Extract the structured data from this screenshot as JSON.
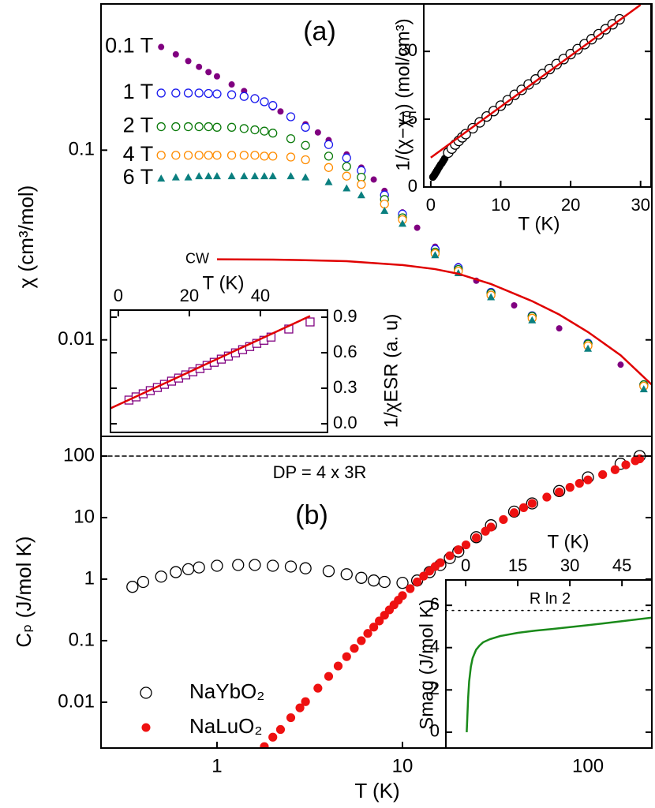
{
  "chart_data": [
    {
      "type": "scatter",
      "panel_label": "(a)",
      "ylabel": "χ (cm³/mol)",
      "xscale": "log",
      "yscale": "log",
      "xlim": [
        0.237,
        221
      ],
      "ylim": [
        0.0031,
        0.59
      ],
      "yticks": [
        0.01,
        0.1
      ],
      "legend": "inline",
      "series": [
        {
          "name": "0.1 T",
          "color": "#800080",
          "marker": "filled-circle",
          "x": [
            0.5,
            0.6,
            0.7,
            0.8,
            0.9,
            1,
            1.2,
            1.4,
            1.6,
            1.8,
            2,
            2.2,
            2.5,
            3,
            3.5,
            4,
            5,
            6,
            7,
            8,
            10,
            12,
            15,
            20,
            25,
            30,
            40,
            50,
            70,
            100,
            150,
            200
          ],
          "values": [
            0.35,
            0.32,
            0.295,
            0.275,
            0.258,
            0.245,
            0.222,
            0.205,
            0.19,
            0.178,
            0.168,
            0.16,
            0.15,
            0.137,
            0.124,
            0.113,
            0.095,
            0.081,
            0.07,
            0.061,
            0.047,
            0.039,
            0.031,
            0.0245,
            0.0205,
            0.018,
            0.0152,
            0.0135,
            0.0115,
            0.0097,
            0.0074,
            0.0059
          ]
        },
        {
          "name": "1 T",
          "color": "#1a1aee",
          "marker": "open-circle",
          "x": [
            0.5,
            0.6,
            0.7,
            0.8,
            0.9,
            1,
            1.2,
            1.4,
            1.6,
            1.8,
            2,
            2.5,
            3,
            4,
            5,
            6,
            8,
            10,
            15,
            20,
            30,
            50,
            100,
            200
          ],
          "values": [
            0.2,
            0.2,
            0.2,
            0.2,
            0.199,
            0.198,
            0.196,
            0.192,
            0.187,
            0.18,
            0.172,
            0.15,
            0.132,
            0.107,
            0.091,
            0.078,
            0.058,
            0.046,
            0.03,
            0.024,
            0.0178,
            0.0134,
            0.0096,
            0.0058
          ]
        },
        {
          "name": "2 T",
          "color": "#0a7a0a",
          "marker": "open-circle",
          "x": [
            0.5,
            0.6,
            0.7,
            0.8,
            0.9,
            1,
            1.2,
            1.4,
            1.6,
            1.8,
            2,
            2.5,
            3,
            4,
            5,
            6,
            8,
            10,
            15,
            20,
            30,
            50,
            100,
            200
          ],
          "values": [
            0.133,
            0.133,
            0.133,
            0.133,
            0.133,
            0.132,
            0.132,
            0.13,
            0.128,
            0.126,
            0.123,
            0.115,
            0.106,
            0.093,
            0.082,
            0.072,
            0.055,
            0.044,
            0.029,
            0.0235,
            0.0176,
            0.0133,
            0.0095,
            0.0058
          ]
        },
        {
          "name": "4 T",
          "color": "#ff8c00",
          "marker": "open-circle",
          "x": [
            0.5,
            0.6,
            0.7,
            0.8,
            0.9,
            1,
            1.2,
            1.4,
            1.6,
            1.8,
            2,
            2.5,
            3,
            4,
            5,
            6,
            8,
            10,
            15,
            20,
            30,
            50,
            100,
            200
          ],
          "values": [
            0.094,
            0.094,
            0.094,
            0.094,
            0.094,
            0.094,
            0.094,
            0.094,
            0.094,
            0.093,
            0.093,
            0.092,
            0.089,
            0.081,
            0.073,
            0.066,
            0.052,
            0.043,
            0.0285,
            0.023,
            0.0172,
            0.013,
            0.0093,
            0.0057
          ]
        },
        {
          "name": "6 T",
          "color": "#0a7f7f",
          "marker": "filled-triangle",
          "x": [
            0.5,
            0.6,
            0.7,
            0.8,
            0.9,
            1,
            1.2,
            1.4,
            1.6,
            1.8,
            2,
            2.5,
            3,
            4,
            5,
            6,
            8,
            10,
            15,
            20,
            30,
            50,
            100,
            200
          ],
          "values": [
            0.071,
            0.072,
            0.072,
            0.073,
            0.073,
            0.073,
            0.073,
            0.073,
            0.073,
            0.073,
            0.073,
            0.073,
            0.072,
            0.068,
            0.063,
            0.058,
            0.048,
            0.041,
            0.028,
            0.0225,
            0.0168,
            0.0127,
            0.009,
            0.0055
          ]
        },
        {
          "name": "CW",
          "color": "#e00000",
          "marker": "line",
          "x": [
            1,
            2,
            3,
            5,
            10,
            15,
            20,
            30,
            50,
            70,
            100,
            150,
            221
          ],
          "values": [
            0.0266,
            0.0265,
            0.0263,
            0.026,
            0.0248,
            0.0236,
            0.0223,
            0.0197,
            0.016,
            0.0136,
            0.011,
            0.0083,
            0.0058
          ]
        }
      ]
    },
    {
      "type": "scatter",
      "xlabel": "T (K)",
      "ylabel": "1/(χ−χ₀) (mol/cm³)",
      "xlim": [
        -1,
        31.5
      ],
      "ylim": [
        0,
        40.5
      ],
      "xticks": [
        0,
        10,
        20,
        30
      ],
      "yticks": [
        0,
        15,
        30
      ],
      "series": [
        {
          "color": "#000000",
          "marker": "filled-circle",
          "x": [
            0.3,
            0.4,
            0.5,
            0.6,
            0.7,
            0.8,
            0.9,
            1,
            1.2,
            1.4,
            1.6,
            1.8,
            2
          ],
          "values": [
            2.2,
            2.4,
            2.6,
            2.9,
            3.1,
            3.4,
            3.6,
            3.9,
            4.4,
            4.9,
            5.3,
            5.8,
            6.3
          ]
        },
        {
          "color": "#000000",
          "marker": "open-circle",
          "x": [
            2.5,
            3,
            3.5,
            4,
            4.5,
            5,
            6,
            7,
            8,
            9,
            10,
            11,
            12,
            13,
            14,
            15,
            16,
            17,
            18,
            19,
            20,
            21,
            22,
            23,
            24,
            25,
            26,
            27
          ],
          "values": [
            7.6,
            8.5,
            9.4,
            10.2,
            11,
            11.7,
            13,
            14.3,
            15.6,
            16.8,
            18,
            19.2,
            20.4,
            21.5,
            22.7,
            23.8,
            25,
            26.1,
            27.2,
            28.3,
            29.4,
            30.5,
            31.6,
            32.7,
            33.8,
            34.9,
            36,
            37.1
          ]
        },
        {
          "color": "#e00000",
          "marker": "line",
          "x": [
            0,
            30
          ],
          "values": [
            6.5,
            40.3
          ]
        }
      ]
    },
    {
      "type": "scatter",
      "xlabel": "T (K)",
      "ylabel": "1/χESR (a. u)",
      "xlim": [
        -2.2,
        58.9
      ],
      "ylim": [
        -0.073,
        0.96
      ],
      "xticks": [
        0,
        20,
        40
      ],
      "yticks": [
        {
          "value": 0,
          "label": "0.0"
        },
        0.3,
        0.6,
        0.9
      ],
      "series": [
        {
          "color": "#800080",
          "marker": "open-square",
          "x": [
            3,
            5,
            7,
            9,
            11,
            13,
            15,
            17,
            19,
            21,
            23,
            25,
            27,
            29,
            31,
            33,
            35,
            37,
            39,
            41,
            43,
            48,
            54
          ],
          "values": [
            0.2,
            0.227,
            0.253,
            0.28,
            0.306,
            0.333,
            0.36,
            0.386,
            0.413,
            0.439,
            0.466,
            0.493,
            0.519,
            0.546,
            0.572,
            0.599,
            0.626,
            0.652,
            0.679,
            0.705,
            0.732,
            0.8,
            0.86
          ]
        },
        {
          "color": "#e00000",
          "marker": "line",
          "x": [
            -2.2,
            54
          ],
          "values": [
            0.13,
            0.91
          ]
        }
      ]
    },
    {
      "type": "scatter",
      "panel_label": "(b)",
      "xlabel": "T (K)",
      "ylabel": "Cₚ (J/mol K)",
      "xscale": "log",
      "yscale": "log",
      "xlim": [
        0.237,
        221
      ],
      "ylim": [
        0.0018,
        209
      ],
      "xticks": [
        1,
        10,
        100
      ],
      "yticks": [
        0.01,
        0.1,
        1,
        10,
        100
      ],
      "reference_line": {
        "value": 100,
        "label": "DP = 4 x 3R"
      },
      "legend": "lower left",
      "series": [
        {
          "name": "NaYbO₂",
          "color": "#000000",
          "marker": "open-circle",
          "x": [
            0.35,
            0.4,
            0.5,
            0.6,
            0.7,
            0.8,
            1,
            1.3,
            1.6,
            2,
            2.5,
            3,
            4,
            5,
            6,
            7,
            8,
            10,
            12,
            14,
            16,
            18,
            20,
            25,
            30,
            40,
            50,
            70,
            100,
            150,
            190
          ],
          "values": [
            0.75,
            0.9,
            1.1,
            1.3,
            1.45,
            1.55,
            1.65,
            1.7,
            1.7,
            1.65,
            1.6,
            1.5,
            1.35,
            1.2,
            1.05,
            0.95,
            0.9,
            0.87,
            0.95,
            1.3,
            1.7,
            2.2,
            2.8,
            4.8,
            7.5,
            12.5,
            17,
            27,
            45,
            75,
            100
          ]
        },
        {
          "name": "NaLuO₂",
          "color": "#ee1111",
          "marker": "filled-circle",
          "x": [
            1.8,
            2,
            2.2,
            2.5,
            2.8,
            3,
            3.5,
            4,
            4.5,
            5,
            5.5,
            6,
            6.5,
            7,
            7.5,
            8,
            8.5,
            9,
            9.5,
            10,
            11,
            12,
            13,
            14,
            15,
            16,
            18,
            20,
            22,
            25,
            28,
            30,
            35,
            40,
            45,
            50,
            60,
            70,
            80,
            90,
            100,
            120,
            140,
            160,
            180,
            190
          ],
          "values": [
            0.0019,
            0.0027,
            0.0036,
            0.0056,
            0.0081,
            0.0102,
            0.0169,
            0.0263,
            0.0387,
            0.055,
            0.075,
            0.1,
            0.131,
            0.166,
            0.209,
            0.259,
            0.316,
            0.381,
            0.456,
            0.54,
            0.7,
            0.9,
            1.12,
            1.35,
            1.6,
            1.85,
            2.4,
            3,
            3.6,
            4.7,
            6,
            7,
            9.3,
            12,
            14.5,
            17,
            21.5,
            26,
            31,
            36,
            41,
            50,
            60,
            72,
            84,
            90
          ]
        }
      ]
    },
    {
      "type": "line",
      "xlabel": "T (K)",
      "ylabel": "Smag (J/mol K)",
      "xlim": [
        -5.7,
        53.6
      ],
      "ylim": [
        -0.75,
        7.2
      ],
      "xticks": [
        0,
        15,
        30,
        45
      ],
      "yticks": [
        0,
        2,
        4,
        6
      ],
      "reference_line": {
        "value": 5.76,
        "label": "R ln 2"
      },
      "series": [
        {
          "color": "#1a8a1a",
          "marker": "line",
          "x": [
            0.3,
            0.5,
            0.7,
            1,
            1.5,
            2,
            3,
            4,
            5,
            7,
            10,
            15,
            20,
            25,
            30,
            35,
            40,
            45,
            53.6
          ],
          "values": [
            0,
            0.8,
            1.6,
            2.4,
            3.1,
            3.5,
            3.9,
            4.1,
            4.25,
            4.4,
            4.55,
            4.7,
            4.8,
            4.88,
            4.97,
            5.06,
            5.15,
            5.25,
            5.42
          ]
        }
      ]
    }
  ]
}
